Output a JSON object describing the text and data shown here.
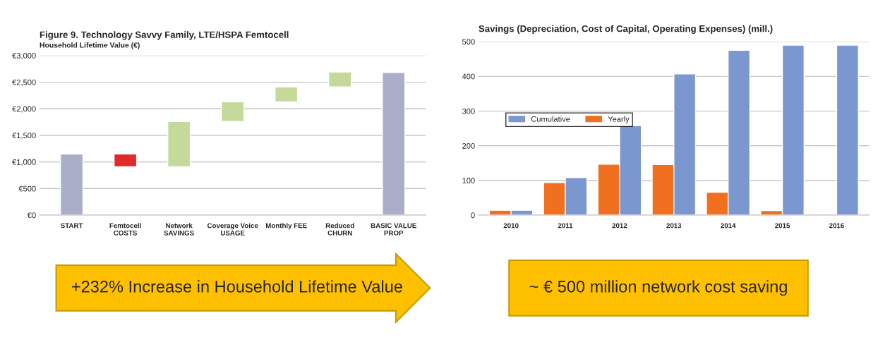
{
  "chart_data": [
    {
      "type": "bar",
      "title": "Figure 9. Technology Savvy Family, LTE/HSPA Femtocell",
      "ylabel": "Household Lifetime Value (€)",
      "categories": [
        "START",
        "Femtocell COSTS",
        "Network SAVINGS",
        "Coverage Voice USAGE",
        "Monthly FEE",
        "Reduced CHURN",
        "BASIC VALUE PROP"
      ],
      "values": [
        1150,
        -240,
        850,
        370,
        280,
        280,
        2680
      ],
      "base": [
        0,
        1150,
        910,
        1760,
        2130,
        2410,
        0
      ],
      "colors": [
        "#a9afc8",
        "#e02a2a",
        "#c5d99a",
        "#c5d99a",
        "#c5d99a",
        "#c5d99a",
        "#a9afc8"
      ],
      "ylim": [
        0,
        3000
      ],
      "yticks": [
        {
          "value": 0,
          "label": "€0"
        },
        {
          "value": 500,
          "label": "€500"
        },
        {
          "value": 1000,
          "label": "€1,000"
        },
        {
          "value": 1500,
          "label": "€1,500"
        },
        {
          "value": 2000,
          "label": "€2,000"
        },
        {
          "value": 2500,
          "label": "€2,500"
        },
        {
          "value": 3000,
          "label": "€3,000"
        }
      ],
      "grid": "y",
      "annotations": [
        "+232% Increase in Household Lifetime Value"
      ]
    },
    {
      "type": "bar",
      "title": "Savings (Depreciation, Cost of Capital, Operating Expenses) (mill.)",
      "categories": [
        "2010",
        "2011",
        "2012",
        "2013",
        "2014",
        "2015",
        "2016"
      ],
      "series": [
        {
          "name": "Yearly",
          "color": "#f07020",
          "values": [
            14,
            94,
            147,
            146,
            66,
            13,
            null
          ]
        },
        {
          "name": "Cumulative",
          "color": "#7b97cf",
          "values": [
            14,
            108,
            258,
            407,
            475,
            490,
            490
          ]
        }
      ],
      "ylim": [
        0,
        500
      ],
      "yticks": [
        0,
        100,
        200,
        300,
        400,
        500
      ],
      "grid": "y",
      "legend": "left",
      "annotations": [
        "~ € 500 million network cost saving"
      ]
    }
  ]
}
